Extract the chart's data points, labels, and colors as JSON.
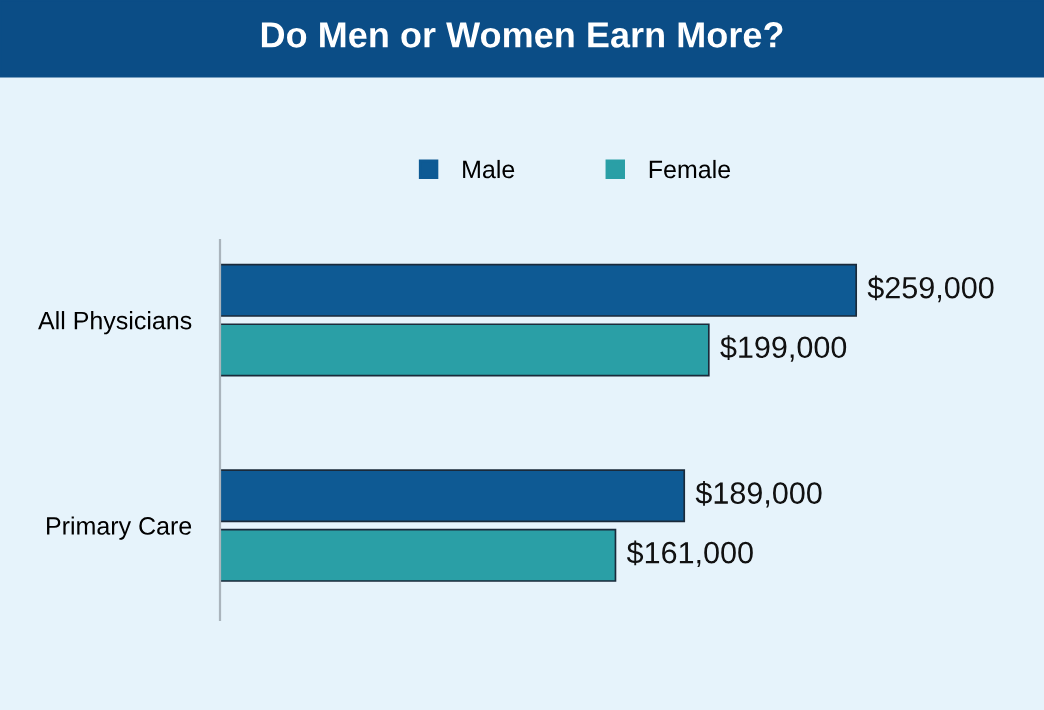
{
  "chart_data": {
    "type": "bar",
    "orientation": "horizontal",
    "title": "Do Men or Women Earn More?",
    "categories": [
      "All Physicians",
      "Primary Care"
    ],
    "series": [
      {
        "name": "Male",
        "color": "#0e5a94",
        "values": [
          259000,
          189000
        ],
        "value_labels": [
          "$259,000",
          "$189,000"
        ]
      },
      {
        "name": "Female",
        "color": "#2a9fa6",
        "values": [
          199000,
          161000
        ],
        "value_labels": [
          "$199,000",
          "$161,000"
        ]
      }
    ],
    "legend": "top",
    "grid": false,
    "tick_labels": "y"
  }
}
